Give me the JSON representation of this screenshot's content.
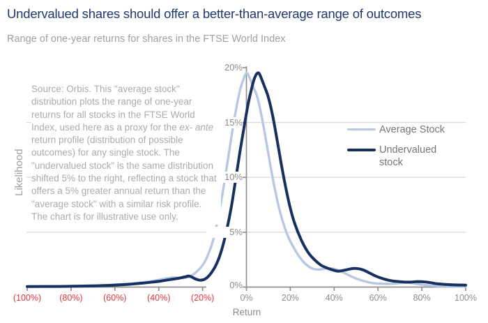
{
  "header": {
    "title": "Undervalued shares should offer a better-than-average range of outcomes",
    "subtitle": "Range of one-year returns for shares in the FTSE World Index"
  },
  "annotation": {
    "text_before_italic": "Source: Orbis. This \"average stock\" distribution plots the range of one-year returns for all stocks in the FTSE World Index, used here as a proxy for the ",
    "italic_text": "ex- ante",
    "text_after_italic": " return profile (distribution of possible outcomes) for any single stock. The \"undervalued stock\" is the same distribution shifted 5% to the right, reflecting a stock that offers a 5% greater annual return than the \"average stock\" with a similar risk profile. The chart is for illustrative use only."
  },
  "colors": {
    "title": "#20386c",
    "subtitle": "#a0a0a0",
    "annotation": "#ababab",
    "axis": "#8f8f8f",
    "gridline": "#d9d9d9",
    "tick_label": "#8c8c8c",
    "negative_tick": "#e8363c",
    "legend_text": "#767676"
  },
  "chart_data": {
    "type": "line",
    "title": "Undervalued shares should offer a better-than-average range of outcomes",
    "subtitle": "Range of one-year returns for shares in the FTSE World Index",
    "xlabel": "Return",
    "ylabel": "Likelihood",
    "xlim": [
      -100,
      100
    ],
    "ylim": [
      0,
      20
    ],
    "grid": "horizontal",
    "gridlines": [
      5,
      10,
      15
    ],
    "legend_position": "inside-right",
    "x_axis": {
      "ticks": [
        {
          "label": "(100%)",
          "value": -100,
          "negative": true
        },
        {
          "label": "(80%)",
          "value": -80,
          "negative": true
        },
        {
          "label": "(60%)",
          "value": -60,
          "negative": true
        },
        {
          "label": "(40%)",
          "value": -40,
          "negative": true
        },
        {
          "label": "(20%)",
          "value": -20,
          "negative": true
        },
        {
          "label": "0%",
          "value": 0,
          "negative": false
        },
        {
          "label": "20%",
          "value": 20,
          "negative": false
        },
        {
          "label": "40%",
          "value": 40,
          "negative": false
        },
        {
          "label": "60%",
          "value": 60,
          "negative": false
        },
        {
          "label": "80%",
          "value": 80,
          "negative": false
        },
        {
          "label": "100%",
          "value": 100,
          "negative": false
        }
      ]
    },
    "y_axis": {
      "ticks": [
        {
          "label": "0%",
          "value": 0
        },
        {
          "label": "5%",
          "value": 5
        },
        {
          "label": "10%",
          "value": 10
        },
        {
          "label": "15%",
          "value": 15
        },
        {
          "label": "20%",
          "value": 20
        }
      ]
    },
    "series": [
      {
        "name": "Average Stock",
        "color": "#b6c9e2",
        "peak": {
          "x": 0,
          "y": 19.5
        },
        "points": [
          [
            -100,
            0.05
          ],
          [
            -85,
            0.07
          ],
          [
            -72,
            0.12
          ],
          [
            -62,
            0.2
          ],
          [
            -54,
            0.3
          ],
          [
            -48,
            0.42
          ],
          [
            -43,
            0.55
          ],
          [
            -39,
            0.7
          ],
          [
            -36,
            0.8
          ],
          [
            -33,
            0.88
          ],
          [
            -30,
            0.82
          ],
          [
            -27,
            0.88
          ],
          [
            -25,
            1.05
          ],
          [
            -23,
            1.35
          ],
          [
            -21,
            1.75
          ],
          [
            -19,
            2.3
          ],
          [
            -17,
            3.2
          ],
          [
            -15,
            4.4
          ],
          [
            -13,
            6.2
          ],
          [
            -11,
            8.4
          ],
          [
            -9,
            10.9
          ],
          [
            -7,
            13.5
          ],
          [
            -5,
            15.9
          ],
          [
            -3,
            17.9
          ],
          [
            -1,
            19.15
          ],
          [
            0,
            19.5
          ],
          [
            1,
            19.3
          ],
          [
            3,
            18.3
          ],
          [
            5,
            17.3
          ],
          [
            7,
            15.5
          ],
          [
            9,
            13.3
          ],
          [
            11,
            11
          ],
          [
            13,
            8.9
          ],
          [
            15,
            7.1
          ],
          [
            17,
            5.7
          ],
          [
            19,
            4.6
          ],
          [
            21,
            3.8
          ],
          [
            24,
            2.8
          ],
          [
            27,
            2.1
          ],
          [
            30,
            1.7
          ],
          [
            33,
            1.6
          ],
          [
            36,
            1.68
          ],
          [
            38,
            1.72
          ],
          [
            41,
            1.6
          ],
          [
            44,
            1.35
          ],
          [
            47,
            1.05
          ],
          [
            50,
            0.78
          ],
          [
            53,
            0.58
          ],
          [
            56,
            0.42
          ],
          [
            59,
            0.33
          ],
          [
            62,
            0.3
          ],
          [
            66,
            0.3
          ],
          [
            70,
            0.36
          ],
          [
            73,
            0.4
          ],
          [
            76,
            0.35
          ],
          [
            79,
            0.25
          ],
          [
            83,
            0.15
          ],
          [
            88,
            0.09
          ],
          [
            94,
            0.05
          ],
          [
            100,
            0.04
          ]
        ]
      },
      {
        "name": "Undervalued stock",
        "color": "#17305f",
        "peak": {
          "x": 5,
          "y": 19.5
        },
        "points": [
          [
            -100,
            0.05
          ],
          [
            -85,
            0.06
          ],
          [
            -72,
            0.1
          ],
          [
            -62,
            0.16
          ],
          [
            -54,
            0.25
          ],
          [
            -48,
            0.35
          ],
          [
            -43,
            0.45
          ],
          [
            -39,
            0.55
          ],
          [
            -35,
            0.68
          ],
          [
            -31,
            0.8
          ],
          [
            -28,
            0.93
          ],
          [
            -26,
            1.0
          ],
          [
            -23,
            0.72
          ],
          [
            -21,
            0.63
          ],
          [
            -19,
            0.72
          ],
          [
            -17,
            1.05
          ],
          [
            -15,
            1.6
          ],
          [
            -13,
            2.4
          ],
          [
            -11,
            3.6
          ],
          [
            -9,
            5.2
          ],
          [
            -7,
            7.2
          ],
          [
            -5,
            9.7
          ],
          [
            -3,
            12.3
          ],
          [
            -1,
            14.7
          ],
          [
            1,
            16.9
          ],
          [
            3,
            18.6
          ],
          [
            4,
            19.2
          ],
          [
            5,
            19.5
          ],
          [
            6,
            19.4
          ],
          [
            8,
            18.4
          ],
          [
            10,
            17.3
          ],
          [
            12,
            15.6
          ],
          [
            14,
            13.4
          ],
          [
            16,
            11.1
          ],
          [
            18,
            9.0
          ],
          [
            20,
            7.2
          ],
          [
            22,
            5.8
          ],
          [
            25,
            4.3
          ],
          [
            28,
            3.2
          ],
          [
            31,
            2.5
          ],
          [
            34,
            2.0
          ],
          [
            37,
            1.72
          ],
          [
            40,
            1.52
          ],
          [
            42,
            1.45
          ],
          [
            45,
            1.55
          ],
          [
            48,
            1.68
          ],
          [
            50,
            1.7
          ],
          [
            53,
            1.58
          ],
          [
            56,
            1.3
          ],
          [
            59,
            1.0
          ],
          [
            62,
            0.78
          ],
          [
            65,
            0.62
          ],
          [
            68,
            0.52
          ],
          [
            72,
            0.46
          ],
          [
            75,
            0.45
          ],
          [
            78,
            0.5
          ],
          [
            81,
            0.48
          ],
          [
            84,
            0.4
          ],
          [
            87,
            0.3
          ],
          [
            91,
            0.24
          ],
          [
            95,
            0.2
          ],
          [
            100,
            0.18
          ]
        ]
      }
    ]
  }
}
